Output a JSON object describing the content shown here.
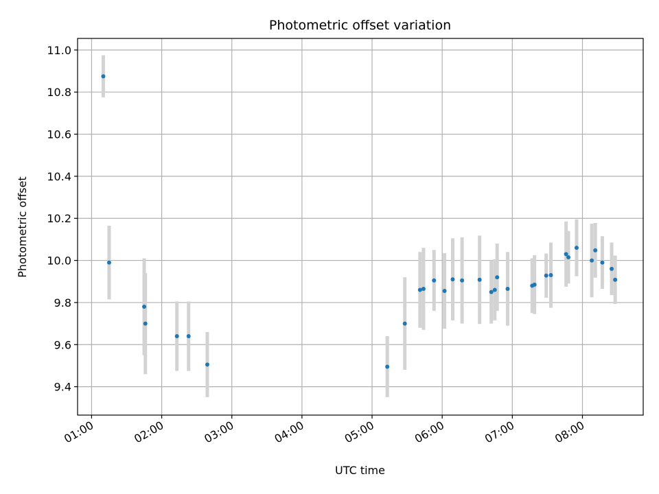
{
  "chart_data": {
    "type": "scatter",
    "title": "Photometric offset variation",
    "xlabel": "UTC time",
    "ylabel": "Photometric offset",
    "x_unit": "UTC hh:mm",
    "xlim": [
      "00:48",
      "08:52"
    ],
    "ylim": [
      9.265,
      11.055
    ],
    "x_ticks": [
      "01:00",
      "02:00",
      "03:00",
      "04:00",
      "05:00",
      "06:00",
      "07:00",
      "08:00"
    ],
    "y_ticks": [
      "9.4",
      "9.6",
      "9.8",
      "10.0",
      "10.2",
      "10.4",
      "10.6",
      "10.8",
      "11.0"
    ],
    "grid": true,
    "marker_color": "#1f77b4",
    "errorbar_color": "#d3d3d3",
    "points": [
      {
        "t": "01:10",
        "y": 10.875,
        "err": 0.1
      },
      {
        "t": "01:15",
        "y": 9.99,
        "err": 0.175
      },
      {
        "t": "01:45",
        "y": 9.78,
        "err": 0.23
      },
      {
        "t": "01:46",
        "y": 9.7,
        "err": 0.24
      },
      {
        "t": "02:13",
        "y": 9.64,
        "err": 0.165
      },
      {
        "t": "02:23",
        "y": 9.64,
        "err": 0.165
      },
      {
        "t": "02:39",
        "y": 9.505,
        "err": 0.155
      },
      {
        "t": "05:13",
        "y": 9.495,
        "err": 0.145
      },
      {
        "t": "05:28",
        "y": 9.7,
        "err": 0.22
      },
      {
        "t": "05:41",
        "y": 9.86,
        "err": 0.18
      },
      {
        "t": "05:44",
        "y": 9.865,
        "err": 0.195
      },
      {
        "t": "05:53",
        "y": 9.905,
        "err": 0.145
      },
      {
        "t": "06:02",
        "y": 9.855,
        "err": 0.18
      },
      {
        "t": "06:09",
        "y": 9.91,
        "err": 0.195
      },
      {
        "t": "06:17",
        "y": 9.905,
        "err": 0.205
      },
      {
        "t": "06:32",
        "y": 9.908,
        "err": 0.21
      },
      {
        "t": "06:42",
        "y": 9.85,
        "err": 0.15
      },
      {
        "t": "06:45",
        "y": 9.86,
        "err": 0.145
      },
      {
        "t": "06:47",
        "y": 9.92,
        "err": 0.16
      },
      {
        "t": "06:56",
        "y": 9.865,
        "err": 0.175
      },
      {
        "t": "07:17",
        "y": 9.88,
        "err": 0.13
      },
      {
        "t": "07:19",
        "y": 9.885,
        "err": 0.14
      },
      {
        "t": "07:29",
        "y": 9.928,
        "err": 0.105
      },
      {
        "t": "07:33",
        "y": 9.93,
        "err": 0.155
      },
      {
        "t": "07:46",
        "y": 10.03,
        "err": 0.155
      },
      {
        "t": "07:48",
        "y": 10.015,
        "err": 0.125
      },
      {
        "t": "07:55",
        "y": 10.06,
        "err": 0.135
      },
      {
        "t": "08:08",
        "y": 10.0,
        "err": 0.175
      },
      {
        "t": "08:11",
        "y": 10.048,
        "err": 0.13
      },
      {
        "t": "08:17",
        "y": 9.99,
        "err": 0.125
      },
      {
        "t": "08:25",
        "y": 9.96,
        "err": 0.125
      },
      {
        "t": "08:28",
        "y": 9.908,
        "err": 0.115
      }
    ]
  }
}
